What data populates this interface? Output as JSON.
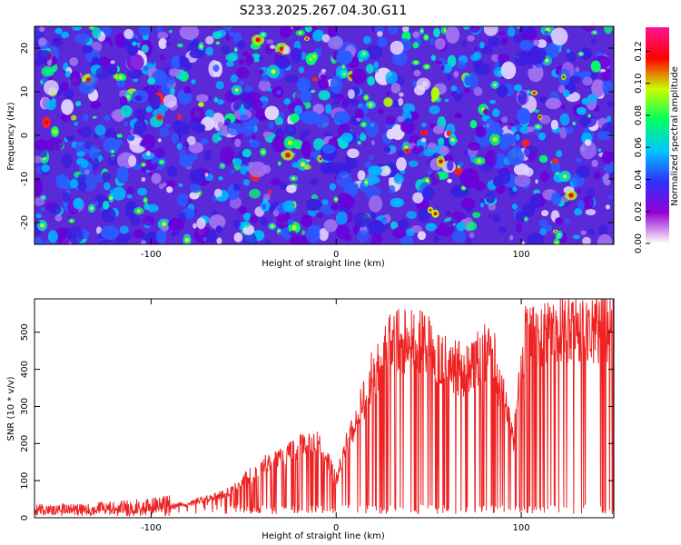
{
  "title": "S233.2025.267.04.30.G11",
  "chart_data": [
    {
      "type": "heatmap",
      "title": "S233.2025.267.04.30.G11",
      "xlabel": "Height of straight line (km)",
      "ylabel": "Frequency (Hz)",
      "xlim": [
        -163,
        150
      ],
      "ylim": [
        -25,
        25
      ],
      "xticks": [
        -100,
        0,
        100
      ],
      "yticks": [
        -20,
        -10,
        0,
        10,
        20
      ],
      "colorbar": {
        "label": "Normalized spectral amplitude",
        "range": [
          0,
          0.135
        ],
        "ticks": [
          "0.00",
          "0.02",
          "0.04",
          "0.06",
          "0.08",
          "0.10",
          "0.12"
        ],
        "colors": [
          "#ffffff",
          "#9400d3",
          "#3030ff",
          "#00c8ff",
          "#00ff60",
          "#c8ff00",
          "#ff0000",
          "#ff1493"
        ]
      },
      "background_level": 0.025,
      "peak_level": 0.13
    },
    {
      "type": "line",
      "xlabel": "Height of straight line (km)",
      "ylabel": "SNR (10 * v/v)",
      "xlim": [
        -163,
        150
      ],
      "ylim": [
        0,
        590
      ],
      "xticks": [
        -100,
        0,
        100
      ],
      "yticks": [
        0,
        100,
        200,
        300,
        400,
        500
      ],
      "line_color": "#ee2222",
      "x": [
        -163,
        -140,
        -120,
        -100,
        -80,
        -60,
        -50,
        -40,
        -30,
        -20,
        -10,
        0,
        5,
        10,
        20,
        30,
        40,
        50,
        55,
        60,
        70,
        80,
        85,
        88,
        92,
        96,
        100,
        102,
        110,
        120,
        130,
        140,
        150
      ],
      "y": [
        20,
        22,
        25,
        30,
        40,
        70,
        110,
        150,
        180,
        210,
        230,
        110,
        200,
        280,
        420,
        510,
        520,
        500,
        470,
        440,
        430,
        480,
        480,
        380,
        320,
        230,
        430,
        520,
        530,
        540,
        550,
        545,
        550
      ]
    }
  ]
}
